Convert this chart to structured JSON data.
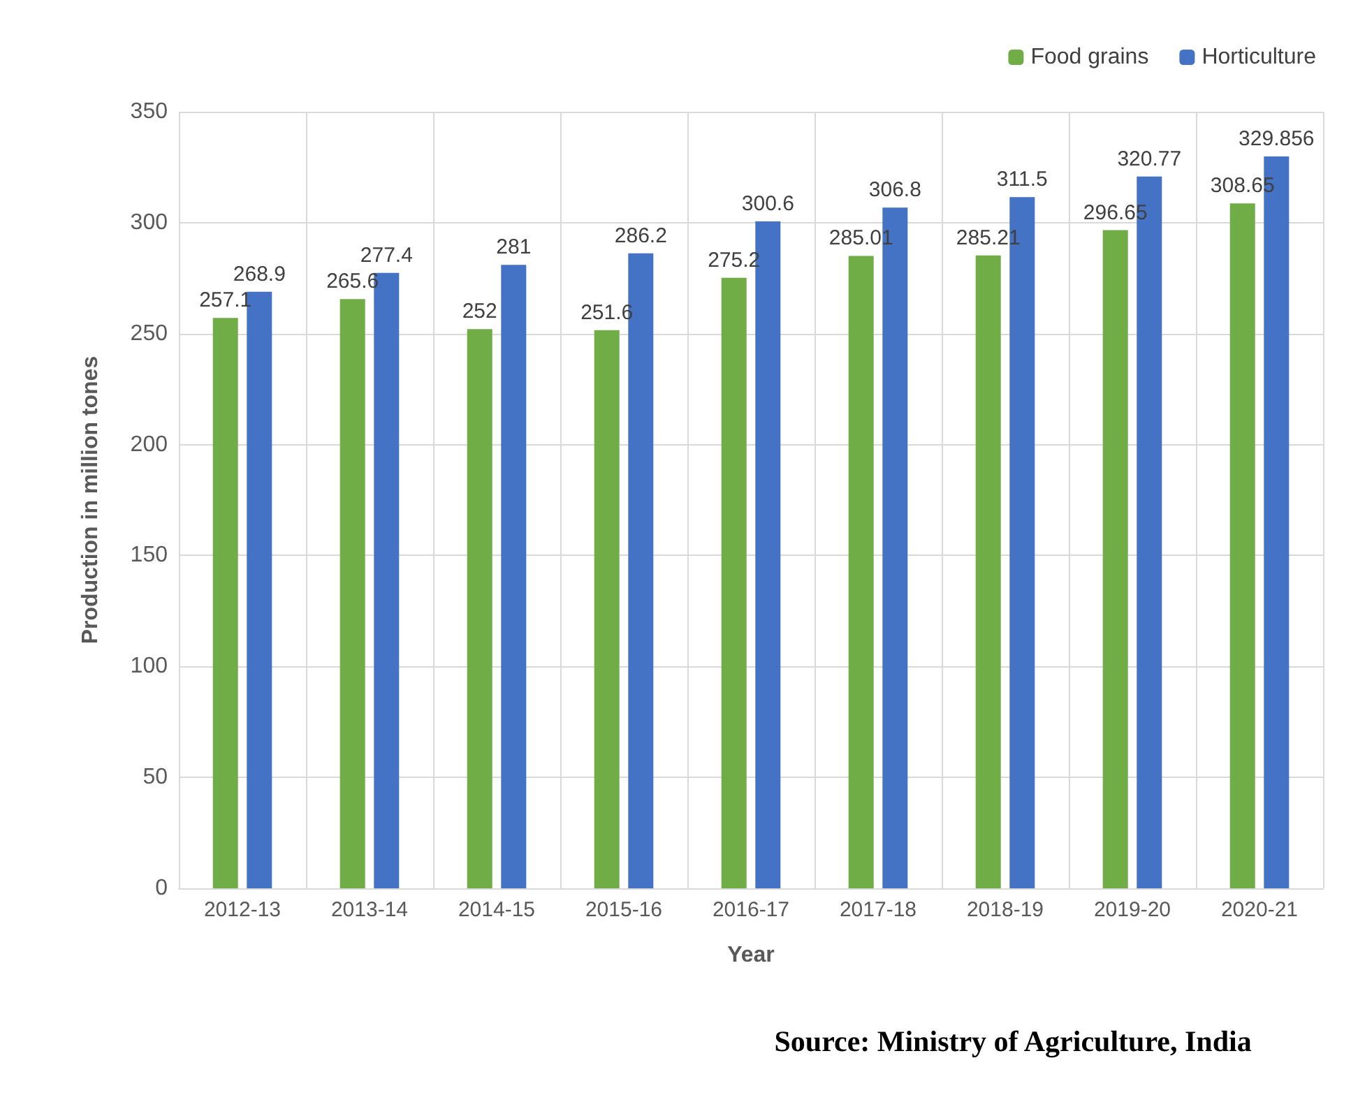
{
  "chart_data": {
    "type": "bar",
    "xlabel": "Year",
    "ylabel": "Production in million tones",
    "categories": [
      "2012-13",
      "2013-14",
      "2014-15",
      "2015-16",
      "2016-17",
      "2017-18",
      "2018-19",
      "2019-20",
      "2020-21"
    ],
    "series": [
      {
        "name": "Food grains",
        "color": "#70ad47",
        "values": [
          257.1,
          265.6,
          252,
          251.6,
          275.2,
          285.01,
          285.21,
          296.65,
          308.65
        ]
      },
      {
        "name": "Horticulture",
        "color": "#4472c4",
        "values": [
          268.9,
          277.4,
          281,
          286.2,
          300.6,
          306.8,
          311.5,
          320.77,
          329.856
        ]
      }
    ],
    "ylim": [
      0,
      350
    ],
    "yticks": [
      0,
      50,
      100,
      150,
      200,
      250,
      300,
      350
    ],
    "grid": true,
    "legend": "top right",
    "data_labels": true,
    "annotations": [
      "Source: Ministry of Agriculture, India"
    ]
  }
}
